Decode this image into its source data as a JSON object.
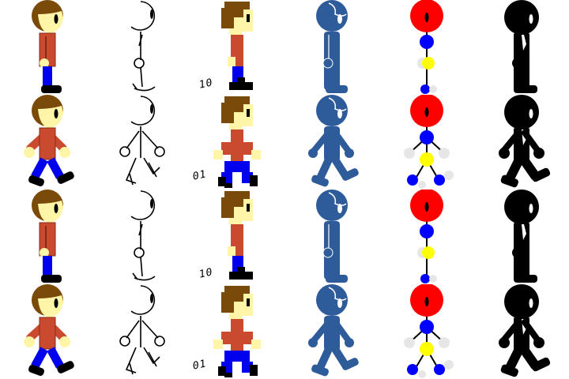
{
  "sprite_sheet": {
    "styles": [
      {
        "name": "cartoon-boy"
      },
      {
        "name": "line-stickman"
      },
      {
        "name": "pixel-boy"
      },
      {
        "name": "blue-silhouette"
      },
      {
        "name": "ball-joint-figure"
      },
      {
        "name": "black-suit-figure"
      }
    ],
    "frames": [
      {
        "pose": "stand",
        "pixel_label": "10"
      },
      {
        "pose": "walk",
        "pixel_label": "01"
      },
      {
        "pose": "stand",
        "pixel_label": "10"
      },
      {
        "pose": "walk",
        "pixel_label": "01"
      }
    ],
    "colors": {
      "skin": "#FFF5A6",
      "hair": "#7A4A08",
      "shirt": "#C94A2E",
      "pants": "#0000EE",
      "shoe": "#000000",
      "silhouette_blue": "#2E5C9A",
      "ball_head_red": "#FF0000",
      "ball_joint_blue": "#0000FF",
      "ball_joint_yellow": "#FFFF00",
      "ball_joint_grey": "#E6E6E6",
      "suit_black": "#000000"
    }
  }
}
